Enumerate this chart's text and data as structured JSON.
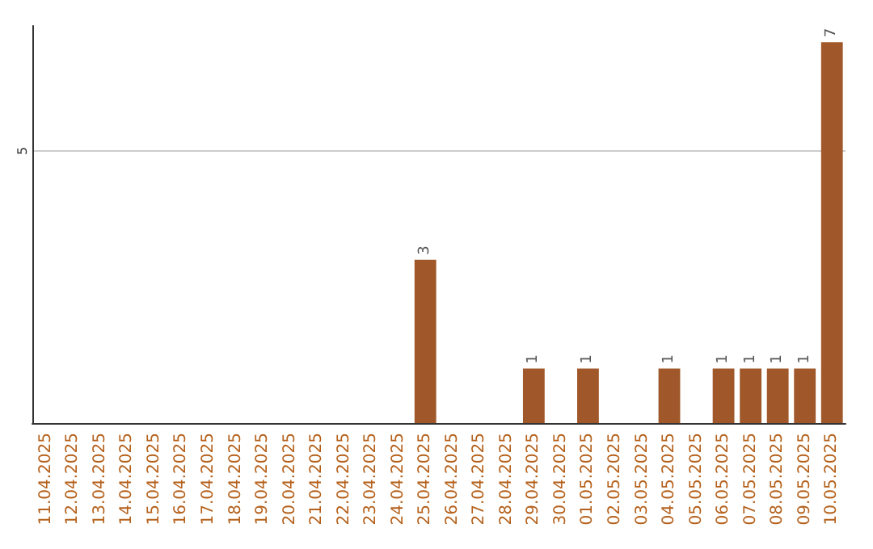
{
  "chart_data": {
    "type": "bar",
    "categories": [
      "11.04.2025",
      "12.04.2025",
      "13.04.2025",
      "14.04.2025",
      "15.04.2025",
      "16.04.2025",
      "17.04.2025",
      "18.04.2025",
      "19.04.2025",
      "20.04.2025",
      "21.04.2025",
      "22.04.2025",
      "23.04.2025",
      "24.04.2025",
      "25.04.2025",
      "26.04.2025",
      "27.04.2025",
      "28.04.2025",
      "29.04.2025",
      "30.04.2025",
      "01.05.2025",
      "02.05.2025",
      "03.05.2025",
      "04.05.2025",
      "05.05.2025",
      "06.05.2025",
      "07.05.2025",
      "08.05.2025",
      "09.05.2025",
      "10.05.2025"
    ],
    "values": [
      null,
      null,
      null,
      null,
      null,
      null,
      null,
      null,
      null,
      null,
      null,
      null,
      null,
      null,
      3,
      null,
      null,
      null,
      1,
      null,
      1,
      null,
      null,
      1,
      null,
      1,
      1,
      1,
      1,
      7
    ],
    "data_labels": true,
    "color": "#a0582a",
    "ylim": [
      0,
      7.3
    ],
    "yticks": [
      {
        "value": 0,
        "label": null
      },
      5
    ],
    "grid": "y"
  }
}
